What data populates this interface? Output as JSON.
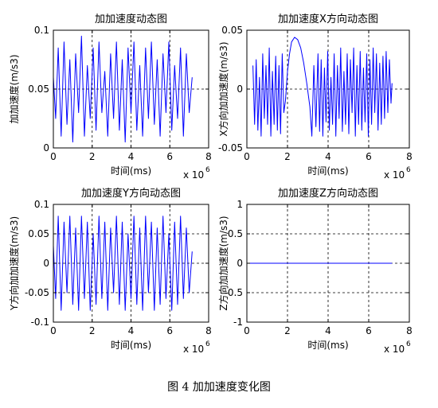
{
  "chart_data": [
    {
      "type": "line",
      "title": "加加速度动态图",
      "xlabel": "时间(ms)",
      "ylabel": "加加速度(m/s3)",
      "x_multiplier": "x 10",
      "x_exponent": "6",
      "xlim": [
        0,
        8
      ],
      "ylim": [
        0,
        0.1
      ],
      "xticks": [
        "0",
        "2",
        "4",
        "6",
        "8"
      ],
      "yticks": [
        "0",
        "0.05",
        "0.1"
      ],
      "ytick_values": [
        0,
        0.05,
        0.1
      ],
      "grid": true,
      "series_color": "#0000ff",
      "series": [
        {
          "x": [
            0,
            0.12,
            0.25,
            0.4,
            0.55,
            0.7,
            0.85,
            1.0,
            1.15,
            1.3,
            1.45,
            1.6,
            1.75,
            1.9,
            2.05,
            2.2,
            2.35,
            2.5,
            2.65,
            2.8,
            2.95,
            3.1,
            3.25,
            3.4,
            3.55,
            3.7,
            3.85,
            4.0,
            4.15,
            4.3,
            4.45,
            4.6,
            4.75,
            4.9,
            5.05,
            5.2,
            5.35,
            5.5,
            5.65,
            5.8,
            5.95,
            6.1,
            6.25,
            6.4,
            6.55,
            6.7,
            6.85,
            7.0,
            7.15
          ],
          "y": [
            0.06,
            0.025,
            0.085,
            0.01,
            0.09,
            0.02,
            0.075,
            0.005,
            0.08,
            0.03,
            0.095,
            0.01,
            0.07,
            0.025,
            0.085,
            0.015,
            0.09,
            0.03,
            0.065,
            0.01,
            0.08,
            0.025,
            0.09,
            0.015,
            0.075,
            0.005,
            0.085,
            0.03,
            0.09,
            0.015,
            0.07,
            0.01,
            0.085,
            0.025,
            0.09,
            0.02,
            0.075,
            0.01,
            0.08,
            0.03,
            0.09,
            0.015,
            0.07,
            0.025,
            0.085,
            0.01,
            0.08,
            0.03,
            0.06
          ]
        }
      ]
    },
    {
      "type": "line",
      "title": "加加速度X方向动态图",
      "xlabel": "时间(ms)",
      "ylabel": "X方向加加速度(m/s3)",
      "x_multiplier": "x 10",
      "x_exponent": "6",
      "xlim": [
        0,
        8
      ],
      "ylim": [
        -0.05,
        0.05
      ],
      "xticks": [
        "0",
        "2",
        "4",
        "6",
        "8"
      ],
      "yticks": [
        "-0.05",
        "0",
        "0.05"
      ],
      "ytick_values": [
        -0.05,
        0,
        0.05
      ],
      "grid": true,
      "series_color": "#0000ff",
      "series": [
        {
          "x": [
            0.3,
            0.38,
            0.46,
            0.54,
            0.62,
            0.7,
            0.78,
            0.86,
            0.94,
            1.02,
            1.1,
            1.18,
            1.26,
            1.34,
            1.42,
            1.5,
            1.58,
            1.66,
            1.74,
            1.82,
            1.9,
            2.0,
            2.1,
            2.2,
            2.35,
            2.5,
            2.65,
            2.8,
            2.95,
            3.1,
            3.2,
            3.3,
            3.4,
            3.5,
            3.58,
            3.66,
            3.74,
            3.82,
            3.9,
            3.98,
            4.06,
            4.14,
            4.22,
            4.3,
            4.38,
            4.46,
            4.54,
            4.62,
            4.7,
            4.78,
            4.86,
            4.94,
            5.02,
            5.1,
            5.18,
            5.26,
            5.34,
            5.42,
            5.5,
            5.58,
            5.66,
            5.74,
            5.82,
            5.9,
            5.98,
            6.06,
            6.14,
            6.22,
            6.3,
            6.38,
            6.46,
            6.54,
            6.62,
            6.7,
            6.78,
            6.86,
            6.94,
            7.02,
            7.1,
            7.15
          ],
          "y": [
            0.02,
            -0.03,
            0.025,
            -0.035,
            0.01,
            -0.04,
            0.03,
            -0.025,
            0.02,
            -0.03,
            0.035,
            -0.04,
            0.015,
            -0.03,
            0.028,
            -0.035,
            0.02,
            -0.038,
            0.03,
            -0.02,
            -0.01,
            0.015,
            0.03,
            0.04,
            0.044,
            0.042,
            0.035,
            0.022,
            0.005,
            -0.015,
            -0.04,
            0.02,
            -0.032,
            0.03,
            -0.036,
            0.025,
            -0.04,
            0.018,
            -0.028,
            0.032,
            -0.035,
            0.01,
            -0.03,
            0.03,
            -0.04,
            0.02,
            -0.025,
            0.035,
            -0.036,
            0.015,
            -0.03,
            0.03,
            -0.038,
            0.025,
            -0.02,
            0.035,
            -0.04,
            0.02,
            -0.03,
            0.032,
            -0.035,
            0.018,
            -0.028,
            0.03,
            -0.04,
            0.025,
            -0.03,
            0.035,
            -0.02,
            0.03,
            -0.035,
            0.022,
            -0.03,
            0.028,
            -0.025,
            0.032,
            -0.02,
            0.025,
            -0.012,
            0.005
          ]
        }
      ]
    },
    {
      "type": "line",
      "title": "加加速度Y方向动态图",
      "xlabel": "时间(ms)",
      "ylabel": "Y方向加加速度(m/s3)",
      "x_multiplier": "x 10",
      "x_exponent": "6",
      "xlim": [
        0,
        8
      ],
      "ylim": [
        -0.1,
        0.1
      ],
      "xticks": [
        "0",
        "2",
        "4",
        "6",
        "8"
      ],
      "yticks": [
        "-0.1",
        "-0.05",
        "0",
        "0.05",
        "0.1"
      ],
      "ytick_values": [
        -0.1,
        -0.05,
        0,
        0.05,
        0.1
      ],
      "grid": true,
      "series_color": "#0000ff",
      "series": [
        {
          "x": [
            0,
            0.12,
            0.25,
            0.4,
            0.55,
            0.7,
            0.85,
            1.0,
            1.15,
            1.3,
            1.45,
            1.6,
            1.75,
            1.9,
            2.05,
            2.2,
            2.35,
            2.5,
            2.65,
            2.8,
            2.95,
            3.1,
            3.25,
            3.4,
            3.55,
            3.7,
            3.85,
            4.0,
            4.15,
            4.3,
            4.45,
            4.6,
            4.75,
            4.9,
            5.05,
            5.2,
            5.35,
            5.5,
            5.65,
            5.8,
            5.95,
            6.1,
            6.25,
            6.4,
            6.55,
            6.7,
            6.85,
            7.0,
            7.15
          ],
          "y": [
            0.03,
            -0.06,
            0.08,
            -0.08,
            0.07,
            -0.05,
            0.08,
            -0.07,
            0.06,
            -0.08,
            0.08,
            -0.06,
            0.07,
            -0.08,
            0.05,
            -0.07,
            0.08,
            -0.06,
            0.07,
            -0.08,
            0.06,
            -0.05,
            0.08,
            -0.07,
            0.07,
            -0.08,
            0.05,
            -0.06,
            0.08,
            -0.07,
            0.06,
            -0.08,
            0.08,
            -0.05,
            0.07,
            -0.08,
            0.06,
            -0.07,
            0.08,
            -0.06,
            0.05,
            -0.08,
            0.07,
            -0.07,
            0.08,
            -0.06,
            0.06,
            -0.05,
            0.02
          ]
        }
      ]
    },
    {
      "type": "line",
      "title": "加加速度Z方向动态图",
      "xlabel": "时间(ms)",
      "ylabel": "Z方向加加速度(m/s3)",
      "x_multiplier": "x 10",
      "x_exponent": "6",
      "xlim": [
        0,
        8
      ],
      "ylim": [
        -1,
        1
      ],
      "xticks": [
        "0",
        "2",
        "4",
        "6",
        "8"
      ],
      "yticks": [
        "-1",
        "-0.5",
        "0",
        "0.5",
        "1"
      ],
      "ytick_values": [
        -1,
        -0.5,
        0,
        0.5,
        1
      ],
      "grid": true,
      "series_color": "#0000ff",
      "series": [
        {
          "x": [
            0,
            7.15
          ],
          "y": [
            0,
            0
          ]
        }
      ]
    }
  ],
  "caption": "图 4  加加速度变化图"
}
